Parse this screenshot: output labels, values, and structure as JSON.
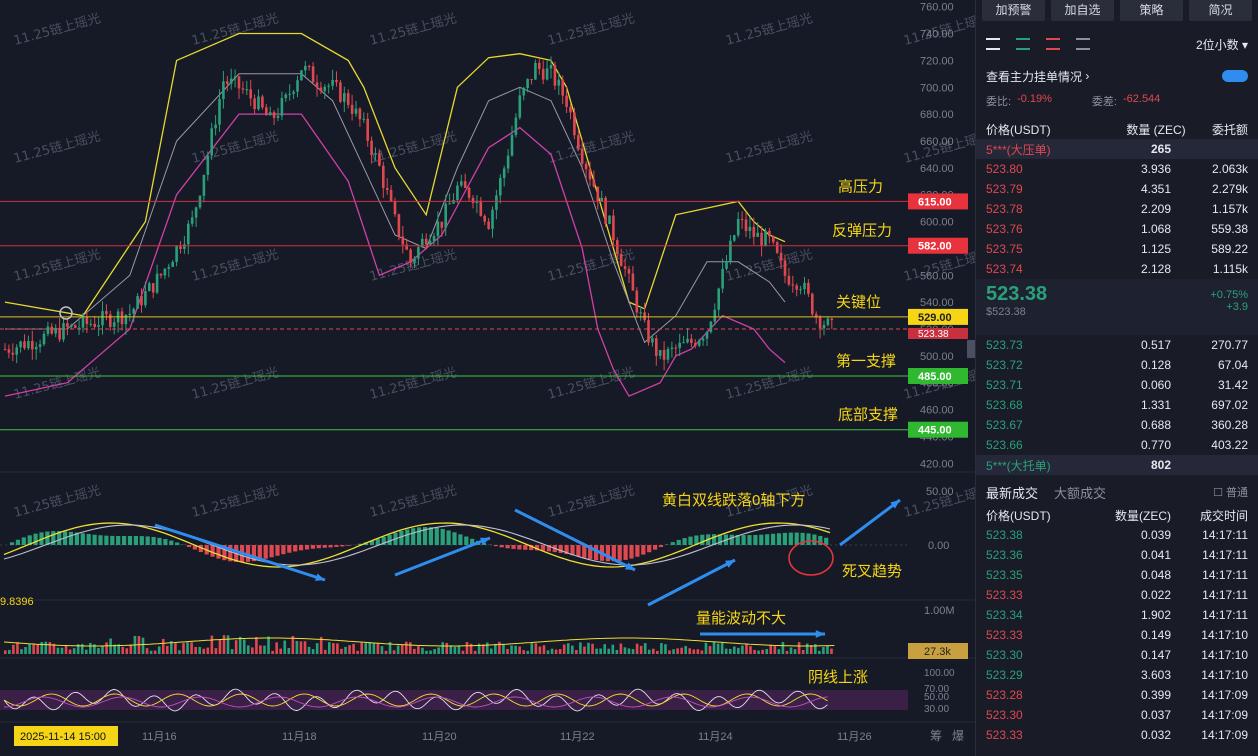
{
  "chart_data": {
    "type": "candlestick",
    "price_axis_ticks": [
      420,
      440,
      460,
      480,
      500,
      520,
      540,
      560,
      580,
      600,
      620,
      640,
      660,
      680,
      700,
      720,
      740,
      760
    ],
    "price_axis_labels": [
      "420.00",
      "440.00",
      "460.00",
      "480.00",
      "500.00",
      "520.00",
      "540.00",
      "560.00",
      "580.00",
      "600.00",
      "620.00",
      "640.00",
      "660.00",
      "680.00",
      "700.00",
      "720.00",
      "740.00",
      "760.00"
    ],
    "ylim": [
      415,
      762
    ],
    "x_labels": [
      "11月16",
      "11月18",
      "11月20",
      "11月22",
      "11月24",
      "11月26"
    ],
    "cursor_date": "2025-11-14 15:00",
    "close_path": [
      [
        0,
        505
      ],
      [
        4,
        512
      ],
      [
        8,
        520
      ],
      [
        12,
        526
      ],
      [
        16,
        532
      ],
      [
        20,
        560
      ],
      [
        24,
        600
      ],
      [
        26,
        650
      ],
      [
        28,
        705
      ],
      [
        30,
        700
      ],
      [
        32,
        690
      ],
      [
        34,
        675
      ],
      [
        36,
        690
      ],
      [
        38,
        715
      ],
      [
        40,
        705
      ],
      [
        42,
        700
      ],
      [
        44,
        690
      ],
      [
        46,
        670
      ],
      [
        48,
        640
      ],
      [
        50,
        600
      ],
      [
        52,
        570
      ],
      [
        54,
        590
      ],
      [
        56,
        600
      ],
      [
        58,
        625
      ],
      [
        60,
        620
      ],
      [
        62,
        600
      ],
      [
        64,
        640
      ],
      [
        66,
        690
      ],
      [
        68,
        715
      ],
      [
        70,
        710
      ],
      [
        72,
        690
      ],
      [
        74,
        650
      ],
      [
        76,
        620
      ],
      [
        78,
        590
      ],
      [
        80,
        555
      ],
      [
        82,
        520
      ],
      [
        84,
        498
      ],
      [
        86,
        505
      ],
      [
        88,
        510
      ],
      [
        90,
        520
      ],
      [
        92,
        560
      ],
      [
        94,
        600
      ],
      [
        96,
        590
      ],
      [
        98,
        585
      ],
      [
        100,
        560
      ],
      [
        102,
        555
      ],
      [
        104,
        530
      ],
      [
        106,
        520
      ]
    ],
    "bollinger_upper": [
      [
        0,
        540
      ],
      [
        10,
        530
      ],
      [
        18,
        600
      ],
      [
        22,
        720
      ],
      [
        30,
        740
      ],
      [
        38,
        740
      ],
      [
        44,
        720
      ],
      [
        46,
        700
      ],
      [
        50,
        640
      ],
      [
        54,
        605
      ],
      [
        58,
        700
      ],
      [
        62,
        722
      ],
      [
        66,
        725
      ],
      [
        70,
        720
      ],
      [
        72,
        700
      ],
      [
        76,
        620
      ],
      [
        78,
        580
      ],
      [
        80,
        540
      ],
      [
        82,
        535
      ],
      [
        86,
        605
      ],
      [
        90,
        610
      ],
      [
        94,
        615
      ],
      [
        96,
        600
      ],
      [
        98,
        590
      ],
      [
        100,
        585
      ]
    ],
    "bollinger_middle": [
      [
        0,
        520
      ],
      [
        8,
        520
      ],
      [
        16,
        560
      ],
      [
        22,
        660
      ],
      [
        30,
        710
      ],
      [
        38,
        710
      ],
      [
        42,
        690
      ],
      [
        46,
        640
      ],
      [
        50,
        590
      ],
      [
        54,
        580
      ],
      [
        58,
        640
      ],
      [
        62,
        690
      ],
      [
        66,
        700
      ],
      [
        70,
        690
      ],
      [
        74,
        640
      ],
      [
        78,
        570
      ],
      [
        82,
        510
      ],
      [
        86,
        530
      ],
      [
        90,
        570
      ],
      [
        94,
        570
      ],
      [
        98,
        555
      ],
      [
        100,
        540
      ]
    ],
    "bollinger_lower": [
      [
        0,
        470
      ],
      [
        8,
        480
      ],
      [
        16,
        520
      ],
      [
        22,
        620
      ],
      [
        30,
        680
      ],
      [
        38,
        680
      ],
      [
        44,
        630
      ],
      [
        48,
        560
      ],
      [
        52,
        570
      ],
      [
        56,
        590
      ],
      [
        62,
        655
      ],
      [
        66,
        670
      ],
      [
        70,
        650
      ],
      [
        74,
        580
      ],
      [
        76,
        520
      ],
      [
        78,
        490
      ],
      [
        80,
        470
      ],
      [
        84,
        480
      ],
      [
        86,
        500
      ],
      [
        88,
        505
      ],
      [
        92,
        530
      ],
      [
        96,
        520
      ],
      [
        98,
        505
      ],
      [
        100,
        495
      ]
    ],
    "levels": [
      {
        "value": 615,
        "label": "615.00",
        "name": "高压力",
        "color": "#e8323c",
        "line": "#d03040"
      },
      {
        "value": 582,
        "label": "582.00",
        "name": "反弹压力",
        "color": "#e8323c",
        "line": "#d03040"
      },
      {
        "value": 529,
        "label": "529.00",
        "name": "关键位",
        "color": "#f5d516",
        "line": "#e0c020"
      },
      {
        "value": 485,
        "label": "485.00",
        "name": "第一支撑",
        "color": "#2fb830",
        "line": "#40c040"
      },
      {
        "value": 445,
        "label": "445.00",
        "name": "底部支撑",
        "color": "#2fb830",
        "line": "#40c040"
      }
    ],
    "current_price_tag": "523.38",
    "macd_axis_labels": [
      "50.00",
      "0.00"
    ],
    "macd_left_value": "9.8396",
    "volume_axis_label": "1.00M",
    "volume_tag": "27.3k",
    "rsi_axis_labels": [
      "100.00",
      "70.00",
      "50.00",
      "30.00"
    ],
    "annotations": [
      "黄白双线跌落0轴下方",
      "死叉趋势",
      "量能波动不大",
      "阴线上涨"
    ],
    "watermark": "11.25链上瑶光"
  },
  "bottom_labels": [
    "筹",
    "爆"
  ],
  "sidebar": {
    "buttons": [
      "加预警",
      "加自选",
      "策略",
      "简况"
    ],
    "decimals": "2位小数",
    "main_orders_label": "查看主力挂单情况",
    "ratio_label": "委比:",
    "ratio_value": "-0.19%",
    "diff_label": "委差:",
    "diff_value": "-62.544",
    "book_header": {
      "price": "价格(USDT)",
      "qty": "数量 (ZEC)",
      "total": "委托额"
    },
    "big_sell": {
      "label": "5***(大压单)",
      "qty": "265"
    },
    "asks": [
      {
        "price": "523.80",
        "qty": "3.936",
        "total": "2.063k"
      },
      {
        "price": "523.79",
        "qty": "4.351",
        "total": "2.279k"
      },
      {
        "price": "523.78",
        "qty": "2.209",
        "total": "1.157k"
      },
      {
        "price": "523.76",
        "qty": "1.068",
        "total": "559.38"
      },
      {
        "price": "523.75",
        "qty": "1.125",
        "total": "589.22"
      },
      {
        "price": "523.74",
        "qty": "2.128",
        "total": "1.115k"
      }
    ],
    "mid": {
      "price": "523.38",
      "usd": "$523.38",
      "change_pct": "+0.75%",
      "change_abs": "+3.9"
    },
    "bids": [
      {
        "price": "523.73",
        "qty": "0.517",
        "total": "270.77"
      },
      {
        "price": "523.72",
        "qty": "0.128",
        "total": "67.04"
      },
      {
        "price": "523.71",
        "qty": "0.060",
        "total": "31.42"
      },
      {
        "price": "523.68",
        "qty": "1.331",
        "total": "697.02"
      },
      {
        "price": "523.67",
        "qty": "0.688",
        "total": "360.28"
      },
      {
        "price": "523.66",
        "qty": "0.770",
        "total": "403.22"
      }
    ],
    "big_buy": {
      "label": "5***(大托单)",
      "qty": "802"
    },
    "trade_tabs": [
      "最新成交",
      "大额成交"
    ],
    "trade_filter": "普通",
    "trade_header": {
      "price": "价格(USDT)",
      "qty": "数量(ZEC)",
      "time": "成交时间"
    },
    "trades": [
      {
        "price": "523.38",
        "qty": "0.039",
        "time": "14:17:11",
        "side": "buy"
      },
      {
        "price": "523.36",
        "qty": "0.041",
        "time": "14:17:11",
        "side": "buy"
      },
      {
        "price": "523.35",
        "qty": "0.048",
        "time": "14:17:11",
        "side": "buy"
      },
      {
        "price": "523.33",
        "qty": "0.022",
        "time": "14:17:11",
        "side": "sell"
      },
      {
        "price": "523.34",
        "qty": "1.902",
        "time": "14:17:11",
        "side": "buy"
      },
      {
        "price": "523.33",
        "qty": "0.149",
        "time": "14:17:10",
        "side": "sell"
      },
      {
        "price": "523.30",
        "qty": "0.147",
        "time": "14:17:10",
        "side": "buy"
      },
      {
        "price": "523.29",
        "qty": "3.603",
        "time": "14:17:10",
        "side": "buy"
      },
      {
        "price": "523.28",
        "qty": "0.399",
        "time": "14:17:09",
        "side": "sell"
      },
      {
        "price": "523.30",
        "qty": "0.037",
        "time": "14:17:09",
        "side": "sell"
      },
      {
        "price": "523.33",
        "qty": "0.032",
        "time": "14:17:09",
        "side": "sell"
      }
    ]
  }
}
